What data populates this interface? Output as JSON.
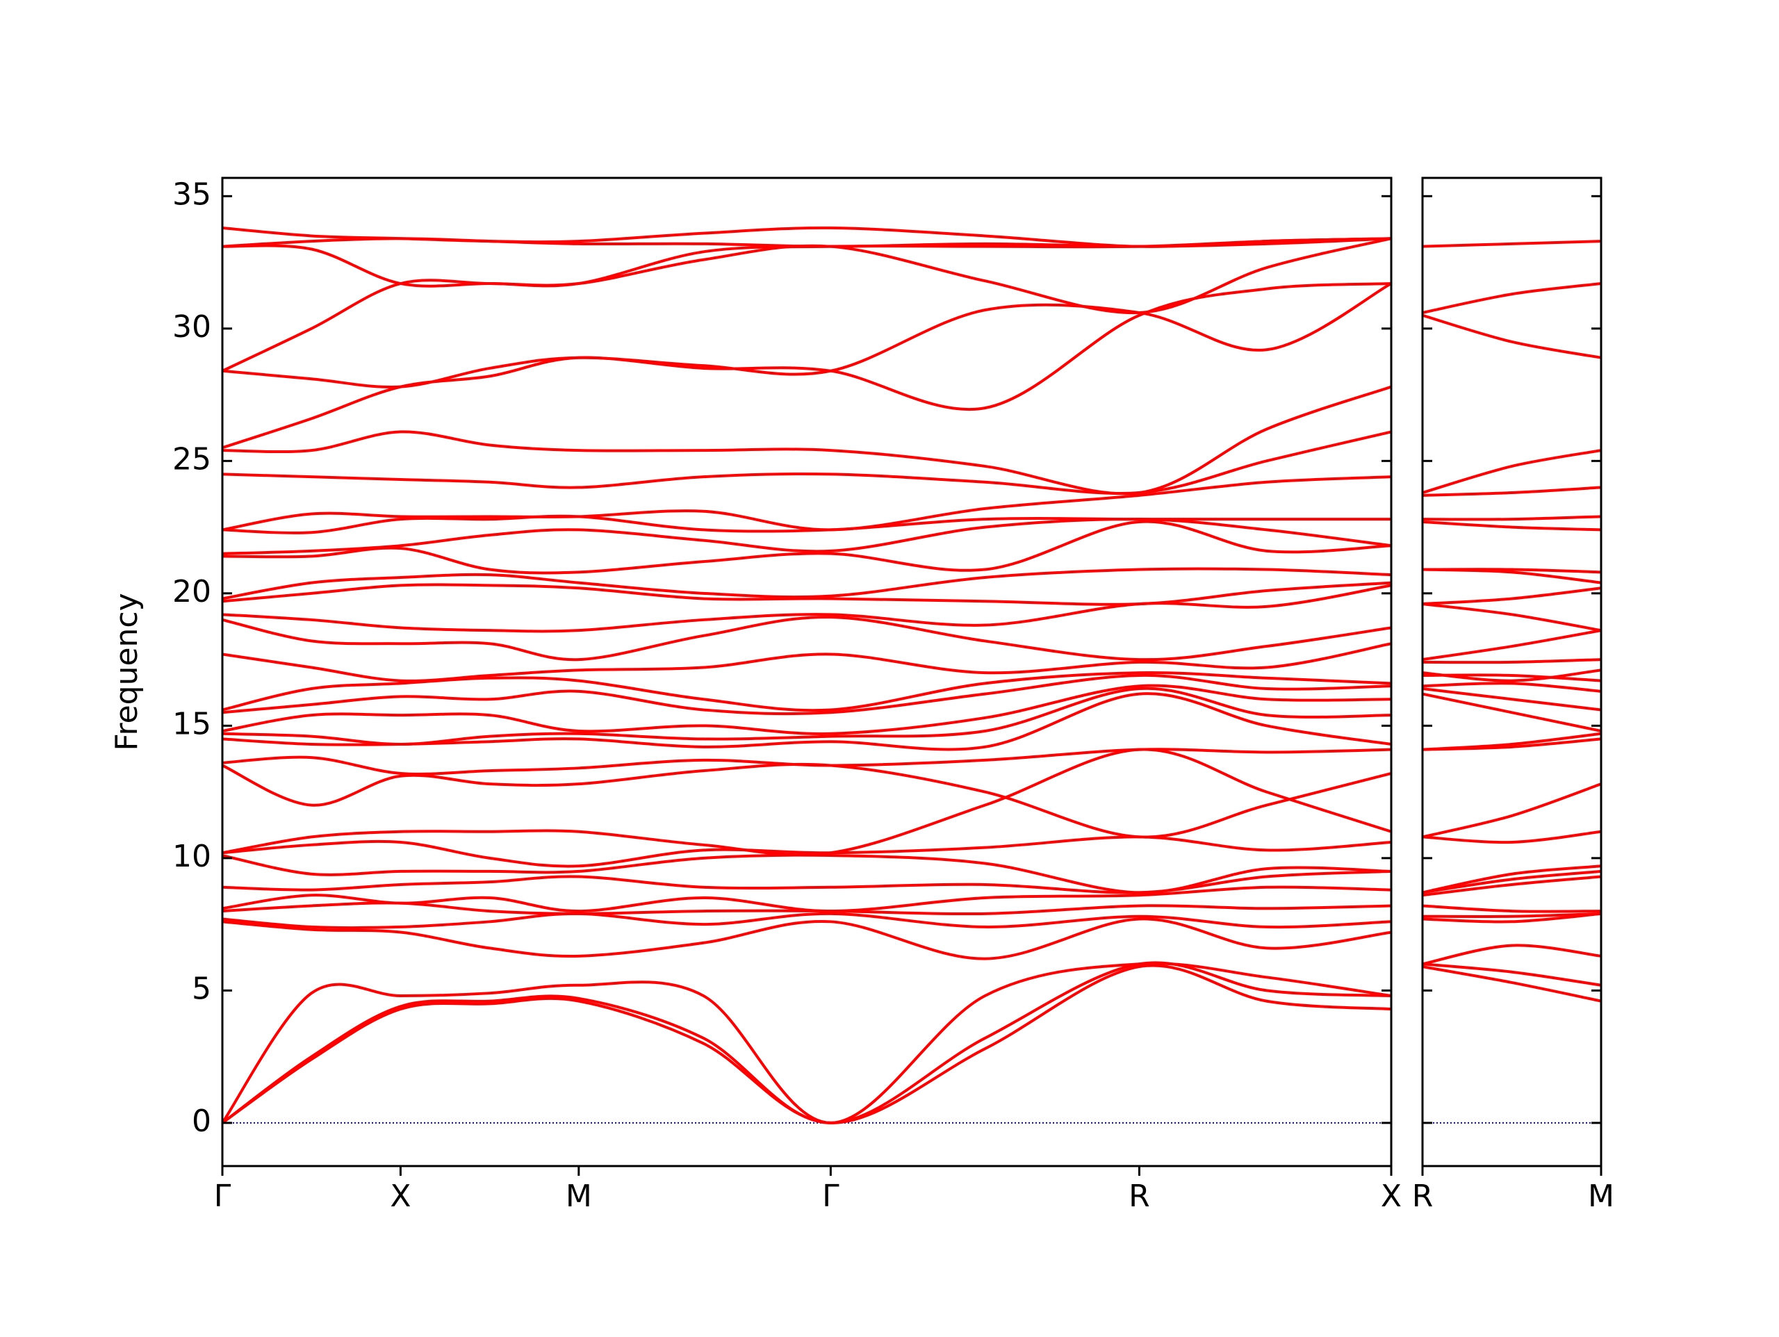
{
  "chart_data": [
    {
      "type": "line",
      "y_label": "Frequency",
      "color": "#ff0000",
      "hline": 0,
      "hline_color": "#0000cc",
      "ytick_labels": true,
      "xlim": [
        0,
        3.28
      ],
      "ylim": [
        -1.63,
        35.69
      ],
      "xticks": [
        {
          "value": 0,
          "label": "Γ"
        },
        {
          "value": 0.5,
          "label": "X"
        },
        {
          "value": 1.0,
          "label": "M"
        },
        {
          "value": 1.707,
          "label": "Γ"
        },
        {
          "value": 2.573,
          "label": "R"
        },
        {
          "value": 3.28,
          "label": "X"
        }
      ],
      "yticks": [
        0,
        5,
        10,
        15,
        20,
        25,
        30,
        35
      ],
      "x": [
        0,
        0.25,
        0.5,
        0.75,
        1.0,
        1.35,
        1.707,
        2.14,
        2.573,
        2.93,
        3.28
      ],
      "series": [
        {
          "values": [
            0,
            2.4,
            4.3,
            4.5,
            4.6,
            3.0,
            0,
            2.8,
            5.9,
            4.6,
            4.3
          ]
        },
        {
          "values": [
            0,
            2.5,
            4.4,
            4.6,
            4.7,
            3.2,
            0,
            3.2,
            6.0,
            5.0,
            4.8
          ]
        },
        {
          "values": [
            0,
            4.9,
            4.8,
            4.9,
            5.2,
            4.8,
            0,
            4.8,
            6.0,
            5.5,
            4.8
          ]
        },
        {
          "values": [
            7.6,
            7.3,
            7.2,
            6.6,
            6.3,
            6.8,
            7.6,
            6.2,
            7.7,
            6.6,
            7.2
          ]
        },
        {
          "values": [
            7.7,
            7.4,
            7.4,
            7.6,
            7.9,
            7.5,
            7.9,
            7.4,
            7.8,
            7.4,
            7.6
          ]
        },
        {
          "values": [
            8.0,
            8.2,
            8.3,
            8.0,
            7.9,
            8.0,
            8.0,
            7.9,
            8.2,
            8.1,
            8.2
          ]
        },
        {
          "values": [
            8.1,
            8.6,
            8.3,
            8.5,
            8.0,
            8.5,
            8.0,
            8.5,
            8.6,
            8.9,
            8.8
          ]
        },
        {
          "values": [
            8.9,
            8.8,
            9.0,
            9.1,
            9.3,
            8.9,
            8.9,
            9.0,
            8.7,
            9.3,
            9.5
          ]
        },
        {
          "values": [
            10.1,
            9.4,
            9.5,
            9.5,
            9.5,
            10.0,
            10.1,
            9.8,
            8.7,
            9.6,
            9.5
          ]
        },
        {
          "values": [
            10.2,
            10.5,
            10.6,
            10.0,
            9.7,
            10.3,
            10.2,
            10.4,
            10.8,
            10.3,
            10.6
          ]
        },
        {
          "values": [
            10.2,
            10.8,
            11.0,
            11.0,
            11.0,
            10.5,
            10.2,
            12.0,
            14.1,
            12.5,
            11.0
          ]
        },
        {
          "values": [
            13.5,
            12.0,
            13.1,
            12.8,
            12.8,
            13.3,
            13.5,
            12.5,
            10.8,
            12.0,
            13.2
          ]
        },
        {
          "values": [
            13.6,
            13.8,
            13.2,
            13.3,
            13.4,
            13.7,
            13.5,
            13.7,
            14.1,
            14.0,
            14.1
          ]
        },
        {
          "values": [
            14.5,
            14.3,
            14.3,
            14.4,
            14.5,
            14.2,
            14.4,
            14.2,
            16.2,
            15.0,
            14.3
          ]
        },
        {
          "values": [
            14.7,
            14.6,
            14.3,
            14.6,
            14.7,
            14.5,
            14.6,
            14.8,
            16.4,
            15.4,
            15.4
          ]
        },
        {
          "values": [
            14.8,
            15.4,
            15.4,
            15.4,
            14.8,
            15.0,
            14.7,
            15.3,
            16.5,
            16.0,
            16.0
          ]
        },
        {
          "values": [
            15.5,
            15.8,
            16.1,
            16.0,
            16.3,
            15.6,
            15.5,
            16.2,
            16.9,
            16.4,
            16.5
          ]
        },
        {
          "values": [
            15.6,
            16.4,
            16.6,
            16.8,
            16.7,
            16.0,
            15.6,
            16.6,
            17.0,
            16.8,
            16.6
          ]
        },
        {
          "values": [
            17.7,
            17.2,
            16.7,
            16.9,
            17.1,
            17.2,
            17.7,
            17.0,
            17.4,
            17.2,
            18.1
          ]
        },
        {
          "values": [
            19.0,
            18.2,
            18.1,
            18.1,
            17.5,
            18.4,
            19.1,
            18.2,
            17.5,
            18.0,
            18.7
          ]
        },
        {
          "values": [
            19.2,
            19.0,
            18.7,
            18.6,
            18.6,
            19.0,
            19.2,
            18.8,
            19.6,
            19.5,
            20.3
          ]
        },
        {
          "values": [
            19.7,
            20.0,
            20.3,
            20.3,
            20.2,
            19.8,
            19.8,
            19.7,
            19.6,
            20.1,
            20.4
          ]
        },
        {
          "values": [
            19.8,
            20.4,
            20.6,
            20.7,
            20.4,
            20.0,
            19.9,
            20.6,
            20.9,
            20.9,
            20.7
          ]
        },
        {
          "values": [
            21.4,
            21.4,
            21.7,
            20.9,
            20.8,
            21.2,
            21.5,
            20.9,
            22.7,
            21.6,
            21.8
          ]
        },
        {
          "values": [
            21.5,
            21.6,
            21.8,
            22.2,
            22.4,
            22.0,
            21.6,
            22.5,
            22.8,
            22.4,
            21.8
          ]
        },
        {
          "values": [
            22.4,
            22.3,
            22.8,
            22.8,
            22.9,
            22.4,
            22.4,
            22.8,
            22.8,
            22.8,
            22.8
          ]
        },
        {
          "values": [
            22.4,
            23.0,
            22.9,
            22.9,
            22.9,
            23.1,
            22.4,
            23.2,
            23.7,
            24.2,
            24.4
          ]
        },
        {
          "values": [
            24.5,
            24.4,
            24.3,
            24.2,
            24.0,
            24.4,
            24.5,
            24.2,
            23.8,
            25.0,
            26.1
          ]
        },
        {
          "values": [
            25.4,
            25.4,
            26.1,
            25.6,
            25.4,
            25.4,
            25.4,
            24.8,
            23.8,
            26.2,
            27.8
          ]
        },
        {
          "values": [
            25.5,
            26.6,
            27.8,
            28.2,
            28.9,
            28.5,
            28.4,
            27.0,
            30.5,
            31.5,
            31.7
          ]
        },
        {
          "values": [
            28.4,
            28.1,
            27.8,
            28.5,
            28.9,
            28.6,
            28.4,
            30.7,
            30.6,
            29.2,
            31.7
          ]
        },
        {
          "values": [
            28.4,
            30.0,
            31.7,
            31.7,
            31.7,
            32.6,
            33.1,
            31.8,
            30.6,
            32.3,
            33.4
          ]
        },
        {
          "values": [
            33.1,
            33.0,
            31.7,
            31.7,
            31.7,
            32.9,
            33.1,
            33.1,
            33.1,
            33.3,
            33.4
          ]
        },
        {
          "values": [
            33.1,
            33.3,
            33.4,
            33.3,
            33.2,
            33.2,
            33.1,
            33.2,
            33.1,
            33.2,
            33.4
          ]
        },
        {
          "values": [
            33.8,
            33.5,
            33.4,
            33.3,
            33.3,
            33.6,
            33.8,
            33.5,
            33.1,
            33.3,
            33.4
          ]
        }
      ]
    },
    {
      "type": "line",
      "color": "#ff0000",
      "hline": 0,
      "hline_color": "#0000cc",
      "ytick_labels": false,
      "xlim": [
        0,
        0.5
      ],
      "ylim": [
        -1.63,
        35.69
      ],
      "xticks": [
        {
          "value": 0,
          "label": "R"
        },
        {
          "value": 0.5,
          "label": "M"
        }
      ],
      "yticks": [
        0,
        5,
        10,
        15,
        20,
        25,
        30,
        35
      ],
      "x": [
        0,
        0.25,
        0.5
      ],
      "series": [
        {
          "values": [
            5.9,
            5.3,
            4.6
          ]
        },
        {
          "values": [
            6.0,
            5.7,
            5.2
          ]
        },
        {
          "values": [
            6.0,
            6.7,
            6.3
          ]
        },
        {
          "values": [
            7.7,
            7.6,
            7.9
          ]
        },
        {
          "values": [
            7.8,
            7.8,
            7.9
          ]
        },
        {
          "values": [
            8.2,
            8.0,
            8.0
          ]
        },
        {
          "values": [
            8.6,
            9.0,
            9.3
          ]
        },
        {
          "values": [
            8.7,
            9.2,
            9.5
          ]
        },
        {
          "values": [
            8.7,
            9.4,
            9.7
          ]
        },
        {
          "values": [
            10.8,
            10.6,
            11.0
          ]
        },
        {
          "values": [
            10.8,
            11.6,
            12.8
          ]
        },
        {
          "values": [
            14.1,
            14.2,
            14.5
          ]
        },
        {
          "values": [
            14.1,
            14.3,
            14.7
          ]
        },
        {
          "values": [
            16.2,
            15.5,
            14.8
          ]
        },
        {
          "values": [
            16.4,
            16.0,
            15.6
          ]
        },
        {
          "values": [
            16.5,
            16.6,
            16.3
          ]
        },
        {
          "values": [
            16.9,
            16.9,
            16.7
          ]
        },
        {
          "values": [
            17.0,
            16.7,
            17.1
          ]
        },
        {
          "values": [
            17.4,
            17.4,
            17.5
          ]
        },
        {
          "values": [
            17.5,
            18.0,
            18.6
          ]
        },
        {
          "values": [
            19.6,
            19.2,
            18.6
          ]
        },
        {
          "values": [
            19.6,
            19.8,
            20.2
          ]
        },
        {
          "values": [
            20.9,
            20.8,
            20.4
          ]
        },
        {
          "values": [
            20.9,
            20.9,
            20.8
          ]
        },
        {
          "values": [
            22.7,
            22.5,
            22.4
          ]
        },
        {
          "values": [
            22.8,
            22.8,
            22.9
          ]
        },
        {
          "values": [
            23.7,
            23.8,
            24.0
          ]
        },
        {
          "values": [
            23.8,
            24.8,
            25.4
          ]
        },
        {
          "values": [
            30.5,
            29.5,
            28.9
          ]
        },
        {
          "values": [
            30.6,
            31.3,
            31.7
          ]
        },
        {
          "values": [
            33.1,
            33.2,
            33.3
          ]
        }
      ]
    }
  ]
}
